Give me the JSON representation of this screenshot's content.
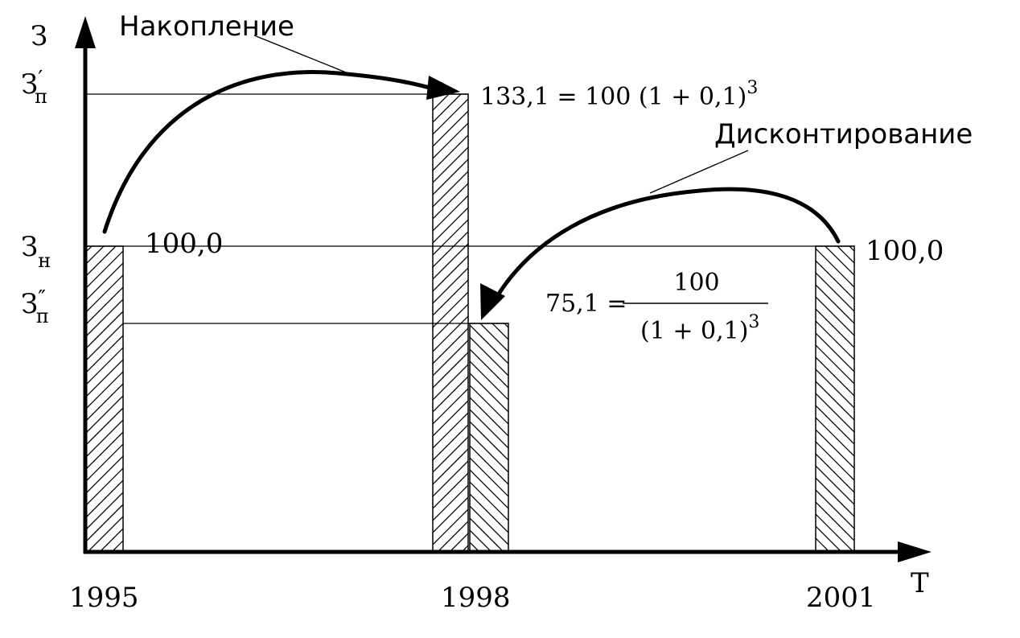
{
  "chart_data": {
    "type": "bar",
    "y_axis_symbol": "З",
    "x_axis_symbol": "T",
    "x_ticks": [
      "1995",
      "1998",
      "2001"
    ],
    "y_ticks": [
      {
        "base": "З",
        "sub": "п",
        "prime": "′",
        "value": 133.1
      },
      {
        "base": "З",
        "sub": "н",
        "prime": "",
        "value": 100.0
      },
      {
        "base": "З",
        "sub": "п",
        "prime": "″",
        "value": 75.1
      }
    ],
    "bars": [
      {
        "year": 1995,
        "value": 100.0,
        "hatch": "forward",
        "label": "100,0"
      },
      {
        "year": 1998,
        "value": 133.1,
        "hatch": "forward",
        "label": ""
      },
      {
        "year": 1998,
        "value": 75.1,
        "hatch": "backward",
        "label": ""
      },
      {
        "year": 2001,
        "value": 100.0,
        "hatch": "backward",
        "label": "100,0"
      }
    ],
    "annotations": {
      "accumulation_label": "Накопление",
      "discounting_label": "Дисконтирование",
      "formula_future_text": "133,1 = 100 (1 + 0,1)",
      "formula_future_exp": "3",
      "formula_present_lhs": "75,1 =",
      "formula_present_num": "100",
      "formula_present_den": "(1 + 0,1)",
      "formula_present_exp": "3"
    },
    "ylim": [
      0,
      150
    ],
    "grid": false,
    "legend": "none"
  }
}
